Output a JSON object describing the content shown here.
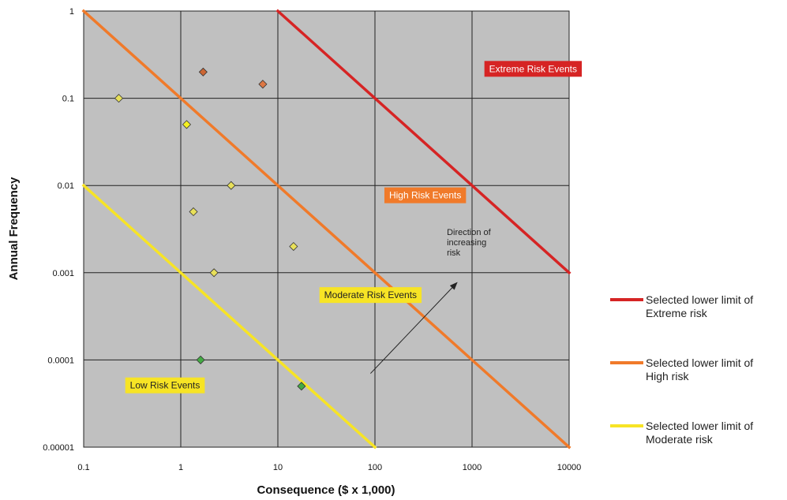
{
  "chart_data": {
    "type": "scatter",
    "x_scale": "log",
    "y_scale": "log",
    "xlabel": "Consequence ($ x 1,000)",
    "ylabel": "Annual Frequency",
    "xlim": [
      0.1,
      10000
    ],
    "ylim": [
      1e-05,
      1
    ],
    "x_ticks": [
      0.1,
      1,
      10,
      100,
      1000,
      10000
    ],
    "x_tick_labels": [
      "0.1",
      "1",
      "10",
      "100",
      "1000",
      "10000"
    ],
    "y_ticks": [
      1,
      0.1,
      0.01,
      0.001,
      0.0001,
      1e-05
    ],
    "y_tick_labels": [
      "1",
      "0.1",
      "0.01",
      "0.001",
      "0.0001",
      "0.00001"
    ],
    "grid": true,
    "plot_background": "#c0c0c0",
    "lines": [
      {
        "name": "Selected lower limit of Extreme risk",
        "legend_lines": [
          "Selected lower limit of",
          "Extreme risk"
        ],
        "color": "#d62424",
        "x": [
          10,
          10000
        ],
        "y": [
          1,
          0.001
        ]
      },
      {
        "name": "Selected lower limit of High risk",
        "legend_lines": [
          "Selected lower limit of",
          "High risk"
        ],
        "color": "#f07a2a",
        "x": [
          0.1,
          10000
        ],
        "y": [
          1,
          1e-05
        ]
      },
      {
        "name": "Selected lower limit of Moderate risk",
        "legend_lines": [
          "Selected lower limit of",
          "Moderate risk"
        ],
        "color": "#f7e425",
        "x": [
          0.1,
          100
        ],
        "y": [
          0.01,
          1e-05
        ]
      }
    ],
    "points": [
      {
        "x": 0.23,
        "y": 0.1,
        "color": "#e8e05a"
      },
      {
        "x": 1.7,
        "y": 0.2,
        "color": "#cc6633"
      },
      {
        "x": 7,
        "y": 0.145,
        "color": "#dd7744"
      },
      {
        "x": 1.15,
        "y": 0.05,
        "color": "#f5f020"
      },
      {
        "x": 3.3,
        "y": 0.01,
        "color": "#e8e05a"
      },
      {
        "x": 1.35,
        "y": 0.005,
        "color": "#e8e05a"
      },
      {
        "x": 14.5,
        "y": 0.002,
        "color": "#e8e05a"
      },
      {
        "x": 2.2,
        "y": 0.001,
        "color": "#e8e05a"
      },
      {
        "x": 1.6,
        "y": 0.0001,
        "color": "#44aa44"
      },
      {
        "x": 17.5,
        "y": 5e-05,
        "color": "#44aa44"
      }
    ],
    "zones": [
      {
        "label": "Extreme Risk Events",
        "x": 1500,
        "y": 0.2,
        "bg": "#d62424",
        "fg": "#ffffff"
      },
      {
        "label": "High Risk Events",
        "x": 140,
        "y": 0.0071,
        "bg": "#f07a2a",
        "fg": "#ffffff"
      },
      {
        "label": "Moderate Risk Events",
        "x": 30,
        "y": 0.00051,
        "bg": "#f7e425",
        "fg": "#222222"
      },
      {
        "label": "Low Risk Events",
        "x": 0.3,
        "y": 4.7e-05,
        "bg": "#f7e425",
        "fg": "#222222"
      }
    ],
    "annotation": {
      "lines": [
        "Direction of",
        "increasing",
        "risk"
      ],
      "arrow_from": {
        "x": 90,
        "y": 7e-05
      },
      "arrow_to": {
        "x": 700,
        "y": 0.00077
      },
      "text_at": {
        "x": 550,
        "y": 0.0027
      }
    }
  }
}
